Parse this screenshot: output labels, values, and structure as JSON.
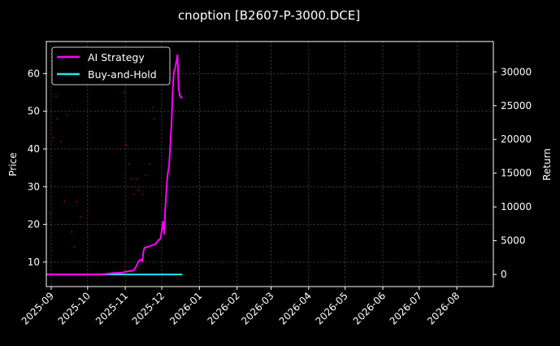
{
  "chart_data": {
    "type": "line",
    "title": "cnoption [B2607-P-3000.DCE]",
    "xlabel": "",
    "ylabel": "Price",
    "y2label": "Return",
    "ylim": [
      3.5,
      68.5
    ],
    "y2lim": [
      -1800,
      34500
    ],
    "xlim": [
      "2025-08-28",
      "2026-08-31"
    ],
    "xticks": [
      "2025-09",
      "2025-10",
      "2025-11",
      "2025-12",
      "2026-01",
      "2026-02",
      "2026-03",
      "2026-04",
      "2026-05",
      "2026-06",
      "2026-07",
      "2026-08"
    ],
    "yticks": [
      10,
      20,
      30,
      40,
      50,
      60
    ],
    "y2ticks": [
      0,
      5000,
      10000,
      15000,
      20000,
      25000,
      30000
    ],
    "grid": true,
    "legend_position": "top-left",
    "series": [
      {
        "name": "AI Strategy",
        "axis": "right",
        "color": "#ff00ff",
        "x": [
          "2025-08-28",
          "2025-09-15",
          "2025-10-01",
          "2025-10-15",
          "2025-10-22",
          "2025-10-29",
          "2025-11-01",
          "2025-11-05",
          "2025-11-08",
          "2025-11-10",
          "2025-11-12",
          "2025-11-14",
          "2025-11-15",
          "2025-11-16",
          "2025-11-17",
          "2025-11-20",
          "2025-11-23",
          "2025-11-26",
          "2025-11-28",
          "2025-11-30",
          "2025-12-01",
          "2025-12-02",
          "2025-12-03",
          "2025-12-04",
          "2025-12-05",
          "2025-12-06",
          "2025-12-07",
          "2025-12-08",
          "2025-12-09",
          "2025-12-10",
          "2025-12-11",
          "2025-12-12",
          "2025-12-13",
          "2025-12-14",
          "2025-12-15",
          "2025-12-16",
          "2025-12-17",
          "2025-12-18"
        ],
        "y": [
          0,
          0,
          0,
          50,
          200,
          250,
          400,
          500,
          600,
          1200,
          2000,
          2200,
          1900,
          3500,
          4000,
          4100,
          4300,
          4500,
          5000,
          5300,
          6500,
          7800,
          6000,
          10000,
          13000,
          15000,
          16000,
          19000,
          22000,
          27000,
          30000,
          30500,
          31500,
          32500,
          27500,
          26500,
          26200,
          26200
        ]
      },
      {
        "name": "Buy-and-Hold",
        "axis": "right",
        "color": "#22e5f0",
        "x": [
          "2025-08-28",
          "2025-12-18"
        ],
        "y": [
          0,
          0
        ]
      }
    ],
    "scatter": {
      "axis": "left",
      "color": "#cc0033",
      "x": [
        "2025-08-31",
        "2025-09-03",
        "2025-09-05",
        "2025-09-06",
        "2025-09-09",
        "2025-09-12",
        "2025-09-14",
        "2025-09-18",
        "2025-09-20",
        "2025-09-22",
        "2025-09-25",
        "2025-10-31",
        "2025-11-02",
        "2025-11-04",
        "2025-11-06",
        "2025-11-08",
        "2025-11-10",
        "2025-11-12",
        "2025-11-15",
        "2025-11-18",
        "2025-11-21",
        "2025-11-24",
        "2025-11-25"
      ],
      "y": [
        23,
        43,
        54,
        48,
        42,
        26,
        49,
        18,
        14,
        26,
        22,
        55,
        41,
        36,
        32,
        28,
        32,
        29,
        28,
        33,
        36,
        51,
        48
      ]
    }
  }
}
